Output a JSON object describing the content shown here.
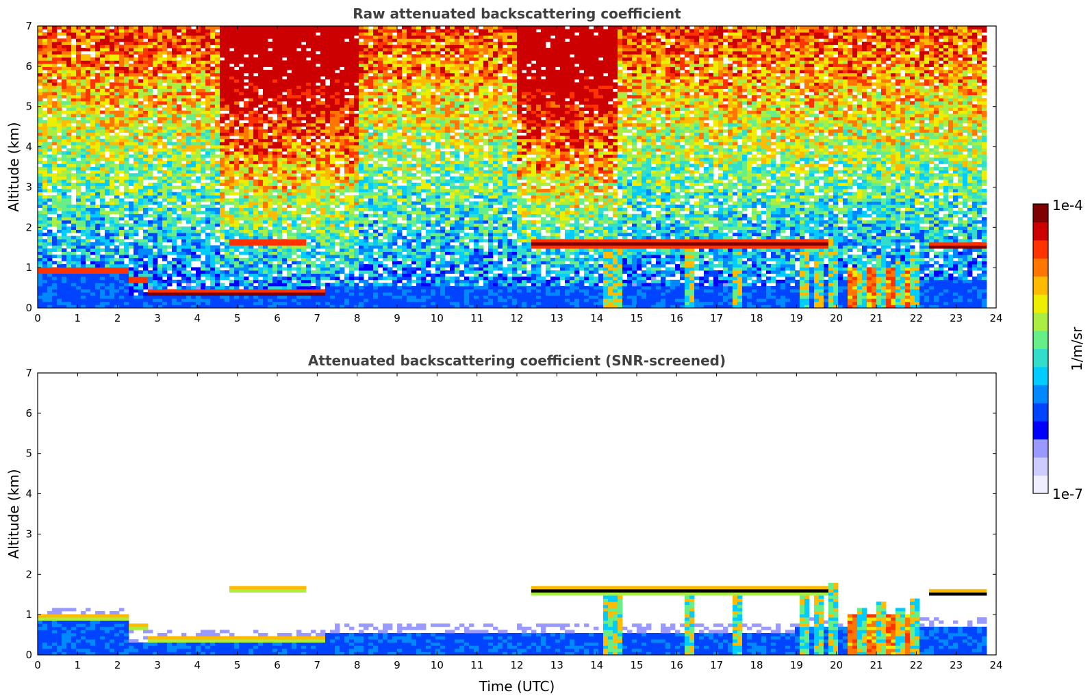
{
  "chart_data": [
    {
      "type": "heatmap",
      "title": "Raw attenuated backscattering coefficient",
      "xlabel": "",
      "ylabel": "Altitude (km)",
      "xlim": [
        0,
        24
      ],
      "ylim": [
        0,
        7
      ],
      "xticks": [
        "0",
        "1",
        "2",
        "3",
        "4",
        "5",
        "6",
        "7",
        "8",
        "9",
        "10",
        "11",
        "12",
        "13",
        "14",
        "15",
        "16",
        "17",
        "18",
        "19",
        "20",
        "21",
        "22",
        "23",
        "24"
      ],
      "yticks": [
        "0",
        "1",
        "2",
        "3",
        "4",
        "5",
        "6",
        "7"
      ],
      "screened": false,
      "cloud_layers": [
        {
          "t0": 0.0,
          "t1": 2.3,
          "base_km": 0.85,
          "top_km": 1.0
        },
        {
          "t0": 2.3,
          "t1": 2.8,
          "base_km": 0.65,
          "top_km": 0.75
        },
        {
          "t0": 2.8,
          "t1": 7.2,
          "base_km": 0.3,
          "top_km": 0.45
        },
        {
          "t0": 4.8,
          "t1": 6.7,
          "base_km": 1.58,
          "top_km": 1.68
        },
        {
          "t0": 12.3,
          "t1": 19.8,
          "base_km": 1.5,
          "top_km": 1.7
        },
        {
          "t0": 22.3,
          "t1": 23.8,
          "base_km": 1.45,
          "top_km": 1.6
        }
      ],
      "precip_shafts": [
        {
          "t": 14.3,
          "top_km": 1.6
        },
        {
          "t": 14.5,
          "top_km": 1.6
        },
        {
          "t": 16.3,
          "top_km": 1.7
        },
        {
          "t": 17.5,
          "top_km": 1.6
        },
        {
          "t": 19.2,
          "top_km": 1.7
        },
        {
          "t": 19.6,
          "top_km": 1.7
        },
        {
          "t": 19.9,
          "top_km": 1.8
        },
        {
          "t": 20.6,
          "top_km": 1.2
        },
        {
          "t": 21.1,
          "top_km": 1.3
        },
        {
          "t": 21.6,
          "top_km": 1.2
        },
        {
          "t": 22.0,
          "top_km": 1.4
        }
      ]
    },
    {
      "type": "heatmap",
      "title": "Attenuated backscattering coefficient (SNR-screened)",
      "xlabel": "Time (UTC)",
      "ylabel": "Altitude (km)",
      "xlim": [
        0,
        24
      ],
      "ylim": [
        0,
        7
      ],
      "xticks": [
        "0",
        "1",
        "2",
        "3",
        "4",
        "5",
        "6",
        "7",
        "8",
        "9",
        "10",
        "11",
        "12",
        "13",
        "14",
        "15",
        "16",
        "17",
        "18",
        "19",
        "20",
        "21",
        "22",
        "23",
        "24"
      ],
      "yticks": [
        "0",
        "1",
        "2",
        "3",
        "4",
        "5",
        "6",
        "7"
      ],
      "screened": true
    }
  ],
  "colorbar": {
    "label": "1/m/sr",
    "max_label": "1e-4",
    "min_label": "1e-7",
    "colors": [
      "#eeeeff",
      "#ccccff",
      "#9999ff",
      "#0000ff",
      "#0044ff",
      "#0088ff",
      "#00ccff",
      "#33ddcc",
      "#66ee88",
      "#aaee44",
      "#eeee00",
      "#ffbb00",
      "#ff7700",
      "#ff3300",
      "#cc0000",
      "#7f0000"
    ]
  }
}
